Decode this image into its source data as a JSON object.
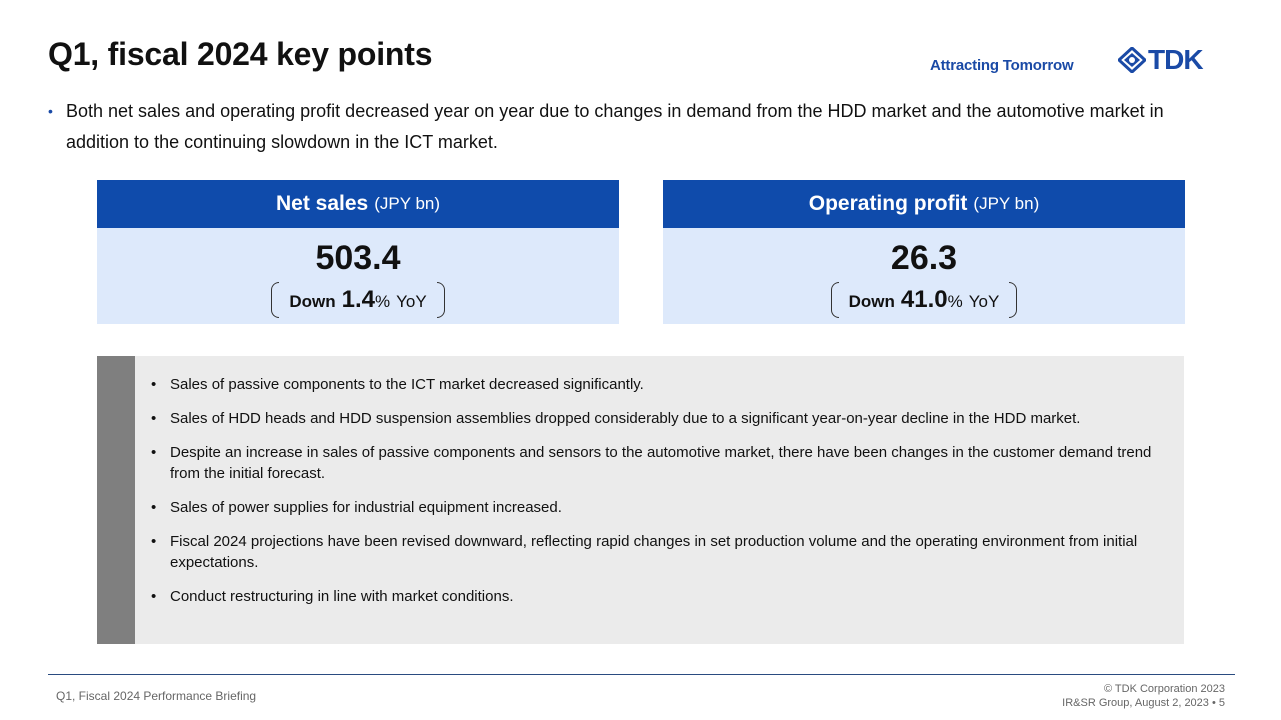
{
  "header": {
    "title": "Q1, fiscal 2024 key points",
    "tagline": "Attracting Tomorrow",
    "logo_text": "TDK"
  },
  "lead": {
    "bullet": "•",
    "text": "Both net sales and operating profit decreased year on year due to changes in demand from the HDD market and the automotive market in addition to the continuing slowdown in the ICT market."
  },
  "kpis": [
    {
      "label": "Net sales",
      "unit": "(JPY bn)",
      "value": "503.4",
      "direction": "Down",
      "change": "1.4",
      "pct": "%",
      "basis": "YoY"
    },
    {
      "label": "Operating profit",
      "unit": "(JPY bn)",
      "value": "26.3",
      "direction": "Down",
      "change": "41.0",
      "pct": "%",
      "basis": "YoY"
    }
  ],
  "notes": [
    "Sales of passive components to the ICT market decreased significantly.",
    "Sales of HDD heads and HDD suspension assemblies dropped considerably due to a significant year-on-year decline in the HDD market.",
    "Despite an increase in sales of passive components and sensors to the automotive market, there have been changes in the customer demand trend from the initial forecast.",
    "Sales of power supplies for industrial equipment increased.",
    "Fiscal 2024 projections have been revised downward, reflecting rapid changes in set production volume and the operating environment from initial expectations.",
    "Conduct restructuring in line with market conditions."
  ],
  "notes_bullet": "•",
  "footer": {
    "left": "Q1, Fiscal 2024 Performance Briefing",
    "copyright": "© TDK Corporation 2023",
    "meta": "IR&SR Group, August 2, 2023 • 5"
  },
  "colors": {
    "brand_blue": "#0f4bab",
    "kpi_bg": "#dde9fb",
    "notes_bg": "#ebebeb",
    "notes_stripe": "#7f7f7f"
  },
  "icons": {
    "logo": "tdk-logo-icon"
  }
}
